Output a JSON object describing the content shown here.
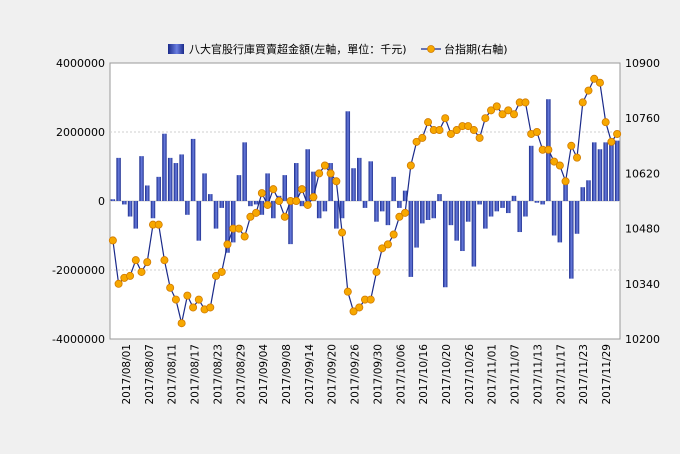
{
  "legend": {
    "bar_label": "八大官股行庫買賣超金額(左軸，單位：千元)",
    "line_label": "台指期(右軸)"
  },
  "colors": {
    "bar_dark": "#1a2a8a",
    "bar_light": "#6a7ee0",
    "line": "#1a2a8a",
    "marker_fill": "#f7a800",
    "marker_stroke": "#d07a00",
    "grid": "#cfcfcf",
    "plot_bg": "#ffffff",
    "page_bg": "#f0f0f0"
  },
  "chart_data": {
    "type": "bar+line",
    "title": "",
    "left_axis": {
      "min": -4000000,
      "max": 4000000,
      "ticks": [
        "4000000",
        "2000000",
        "0",
        "-2000000",
        "-4000000"
      ]
    },
    "right_axis": {
      "min": 10200,
      "max": 10900,
      "ticks": [
        "10900",
        "10760",
        "10620",
        "10480",
        "10340",
        "10200"
      ]
    },
    "x_tick_labels": [
      "2017/08/01",
      "2017/08/07",
      "2017/08/11",
      "2017/08/17",
      "2017/08/23",
      "2017/08/29",
      "2017/09/04",
      "2017/09/08",
      "2017/09/14",
      "2017/09/20",
      "2017/09/26",
      "2017/09/30",
      "2017/10/06",
      "2017/10/16",
      "2017/10/20",
      "2017/10/26",
      "2017/11/01",
      "2017/11/07",
      "2017/11/13",
      "2017/11/17",
      "2017/11/23",
      "2017/11/29"
    ],
    "series": [
      {
        "name": "八大官股行庫買賣超金額(左軸，單位：千元)",
        "type": "bar",
        "values": [
          50000,
          1250000,
          -100000,
          -450000,
          -800000,
          1300000,
          450000,
          -500000,
          700000,
          1950000,
          1250000,
          1100000,
          1350000,
          -400000,
          1800000,
          -1150000,
          800000,
          200000,
          -800000,
          -200000,
          -1500000,
          -1200000,
          750000,
          1700000,
          -150000,
          -100000,
          -400000,
          800000,
          -500000,
          150000,
          750000,
          -1250000,
          1100000,
          -150000,
          1500000,
          850000,
          -500000,
          -300000,
          1100000,
          -800000,
          -500000,
          2600000,
          950000,
          1250000,
          -200000,
          1150000,
          -600000,
          -300000,
          -700000,
          700000,
          -200000,
          300000,
          -2200000,
          -1350000,
          -650000,
          -550000,
          -500000,
          200000,
          -2500000,
          -700000,
          -1150000,
          -1450000,
          -600000,
          -1900000,
          -100000,
          -800000,
          -450000,
          -300000,
          -200000,
          -350000,
          150000,
          -900000,
          -450000,
          1600000,
          -50000,
          -100000,
          2950000,
          -1000000,
          -1200000,
          650000,
          -2250000,
          -950000,
          400000,
          600000,
          1700000,
          1500000,
          1700000,
          1700000,
          1750000
        ],
        "line_values": null
      },
      {
        "name": "台指期(右軸)",
        "type": "line",
        "values": [
          10450,
          10340,
          10355,
          10360,
          10400,
          10370,
          10395,
          10490,
          10490,
          10400,
          10330,
          10300,
          10240,
          10310,
          10280,
          10300,
          10275,
          10280,
          10360,
          10370,
          10440,
          10480,
          10480,
          10460,
          10510,
          10520,
          10570,
          10540,
          10580,
          10550,
          10510,
          10550,
          10550,
          10580,
          10540,
          10560,
          10620,
          10640,
          10620,
          10600,
          10470,
          10320,
          10270,
          10280,
          10300,
          10300,
          10370,
          10430,
          10440,
          10465,
          10510,
          10520,
          10640,
          10700,
          10710,
          10750,
          10730,
          10730,
          10760,
          10720,
          10730,
          10740,
          10740,
          10730,
          10710,
          10760,
          10780,
          10790,
          10770,
          10780,
          10770,
          10800,
          10800,
          10720,
          10725,
          10680,
          10680,
          10650,
          10640,
          10600,
          10690,
          10660,
          10800,
          10830,
          10860,
          10850,
          10750,
          10700,
          10720
        ]
      }
    ],
    "legend_position": "top"
  }
}
